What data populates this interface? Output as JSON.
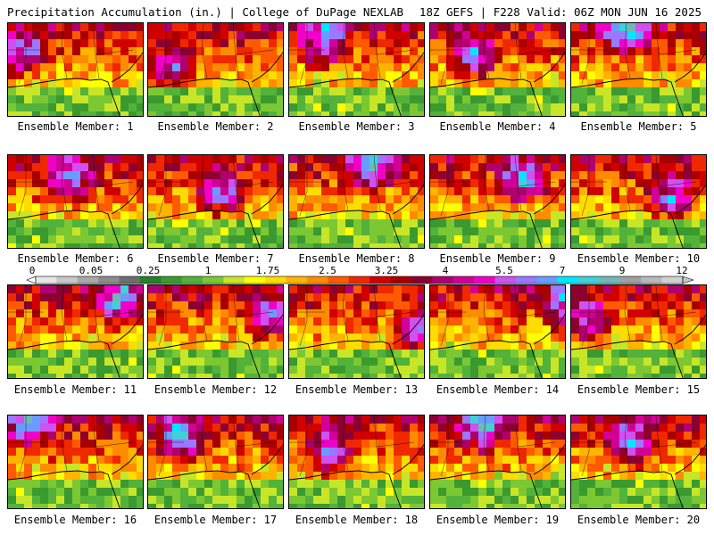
{
  "header": {
    "title": "Precipitation Accumulation (in.) | College of DuPage NEXLAB",
    "run_info": "18Z GEFS | F228 Valid: 06Z MON JUN 16 2025"
  },
  "colorbar": {
    "labels": [
      "0",
      "0.05",
      "0.25",
      "1",
      "1.75",
      "2.5",
      "3.25",
      "4",
      "5.5",
      "7",
      "9",
      "12"
    ],
    "colors": [
      "#e6e6e6",
      "#c8c8c8",
      "#a9a9a9",
      "#8c8c8c",
      "#6e6e6e",
      "#2a7f2a",
      "#3a9a30",
      "#52b23a",
      "#7cc832",
      "#c8e628",
      "#ffff00",
      "#ffdc00",
      "#ffb400",
      "#ff8c00",
      "#ff5a00",
      "#f02800",
      "#d00000",
      "#a80000",
      "#8c0030",
      "#b0006e",
      "#d20096",
      "#f000c8",
      "#d050f0",
      "#9a78ff",
      "#6a9cff",
      "#00e6ff",
      "#40d0d8",
      "#70b8b8",
      "#a0a0a0",
      "#b8b8b8",
      "#d0d0d0"
    ]
  },
  "members": [
    {
      "label": "Ensemble Member: 1"
    },
    {
      "label": "Ensemble Member: 2"
    },
    {
      "label": "Ensemble Member: 3"
    },
    {
      "label": "Ensemble Member: 4"
    },
    {
      "label": "Ensemble Member: 5"
    },
    {
      "label": "Ensemble Member: 6"
    },
    {
      "label": "Ensemble Member: 7"
    },
    {
      "label": "Ensemble Member: 8"
    },
    {
      "label": "Ensemble Member: 9"
    },
    {
      "label": "Ensemble Member: 10"
    },
    {
      "label": "Ensemble Member: 11"
    },
    {
      "label": "Ensemble Member: 12"
    },
    {
      "label": "Ensemble Member: 13"
    },
    {
      "label": "Ensemble Member: 14"
    },
    {
      "label": "Ensemble Member: 15"
    },
    {
      "label": "Ensemble Member: 16"
    },
    {
      "label": "Ensemble Member: 17"
    },
    {
      "label": "Ensemble Member: 18"
    },
    {
      "label": "Ensemble Member: 19"
    },
    {
      "label": "Ensemble Member: 20"
    }
  ]
}
